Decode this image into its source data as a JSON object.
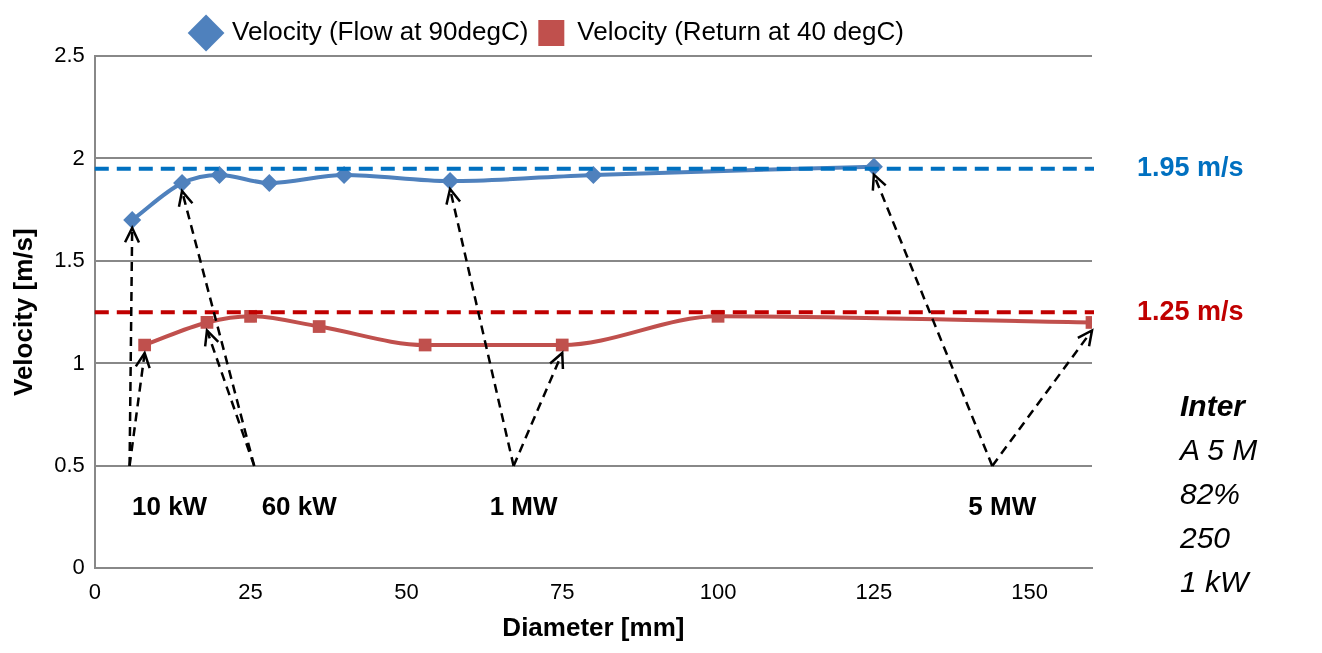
{
  "chart_data": {
    "type": "line",
    "xlabel": "Diameter [mm]",
    "ylabel": "Velocity [m/s]",
    "xlim": [
      0,
      160
    ],
    "xticks": [
      0,
      25,
      50,
      75,
      100,
      125,
      150
    ],
    "ylim": [
      0,
      2.5
    ],
    "yticks": [
      0,
      0.5,
      1,
      1.5,
      2,
      2.5
    ],
    "grid": "y",
    "legend": "top",
    "line_style": "solid",
    "series": [
      {
        "name": "Velocity (Flow at 90degC)",
        "color": "#4f81bd",
        "marker": "diamond",
        "x": [
          6,
          14,
          20,
          28,
          40,
          57,
          80,
          125
        ],
        "values": [
          1.7,
          1.88,
          1.92,
          1.88,
          1.92,
          1.89,
          1.92,
          1.96
        ]
      },
      {
        "name": "Velocity (Return at 40 degC)",
        "color": "#c0504d",
        "marker": "square",
        "x": [
          8,
          18,
          25,
          36,
          53,
          75,
          100,
          160
        ],
        "values": [
          1.09,
          1.2,
          1.23,
          1.18,
          1.09,
          1.09,
          1.23,
          1.2
        ]
      }
    ],
    "ref_lines": [
      {
        "axis": "y",
        "value": 1.95,
        "label": "1.95 m/s",
        "color": "#0070c0",
        "line_style": "dashed"
      },
      {
        "axis": "y",
        "value": 1.25,
        "label": "1.25 m/s",
        "color": "#c00000",
        "line_style": "dashed"
      }
    ],
    "annotations": [
      {
        "text": "10 kW",
        "x": 6,
        "y": 1.7
      },
      {
        "text": "60 kW",
        "x": 14,
        "y": 1.88
      },
      {
        "text": "1 MW",
        "x": 57,
        "y": 1.89
      },
      {
        "text": "5 MW",
        "x": 125,
        "y": 1.96
      },
      "Inter",
      "A 5 M",
      "82%",
      "250",
      "1 kW"
    ]
  }
}
